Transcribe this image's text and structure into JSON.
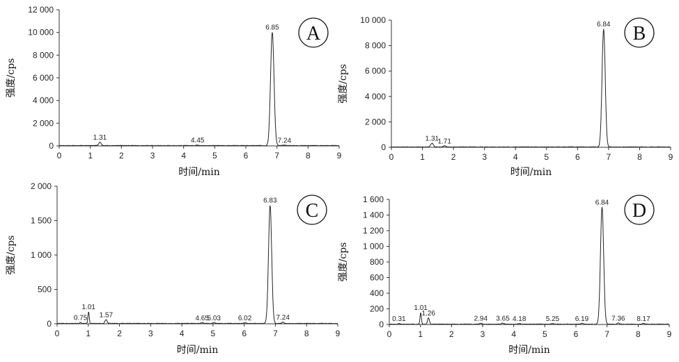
{
  "chart_data": [
    {
      "type": "line",
      "panel": "A",
      "xlabel": "时间/min",
      "ylabel": "强度/cps",
      "xlim": [
        0,
        9
      ],
      "ylim": [
        0,
        12000
      ],
      "xticks": [
        "0",
        "1",
        "2",
        "3",
        "4",
        "5",
        "6",
        "7",
        "8",
        "9"
      ],
      "yticks": [
        "0",
        "2 000",
        "4 000",
        "6 000",
        "8 000",
        "10 000",
        "12 000"
      ],
      "ytick_values": [
        0,
        2000,
        4000,
        6000,
        8000,
        10000,
        12000
      ],
      "peaks": [
        {
          "label": "1.31",
          "x": 1.31,
          "y": 320,
          "width": 0.09
        },
        {
          "label": "4.45",
          "x": 4.45,
          "y": 60,
          "width": 0.1
        },
        {
          "label": "6.85",
          "x": 6.85,
          "y": 10000,
          "width": 0.13
        },
        {
          "label": "7.24",
          "x": 7.24,
          "y": 40,
          "width": 0.1
        }
      ]
    },
    {
      "type": "line",
      "panel": "B",
      "xlabel": "时间/min",
      "ylabel": "强度/cps",
      "xlim": [
        0,
        9
      ],
      "ylim": [
        0,
        10000
      ],
      "xticks": [
        "0",
        "1",
        "2",
        "3",
        "4",
        "5",
        "6",
        "7",
        "8",
        "9"
      ],
      "yticks": [
        "0",
        "2 000",
        "4 000",
        "6 000",
        "8 000",
        "10 000"
      ],
      "ytick_values": [
        0,
        2000,
        4000,
        6000,
        8000,
        10000
      ],
      "peaks": [
        {
          "label": "1.31",
          "x": 1.31,
          "y": 300,
          "width": 0.1
        },
        {
          "label": "1.71",
          "x": 1.71,
          "y": 90,
          "width": 0.1
        },
        {
          "label": "6.84",
          "x": 6.84,
          "y": 9300,
          "width": 0.12
        }
      ]
    },
    {
      "type": "line",
      "panel": "C",
      "xlabel": "时间/min",
      "ylabel": "强度/cps",
      "xlim": [
        0,
        9
      ],
      "ylim": [
        0,
        2000
      ],
      "xticks": [
        "0",
        "1",
        "2",
        "3",
        "4",
        "5",
        "6",
        "7",
        "8",
        "9"
      ],
      "yticks": [
        "0",
        "500",
        "1 000",
        "1 500",
        "2 000"
      ],
      "ytick_values": [
        0,
        500,
        1000,
        1500,
        2000
      ],
      "peaks": [
        {
          "label": "0.75",
          "x": 0.75,
          "y": 15,
          "width": 0.06
        },
        {
          "label": "1.01",
          "x": 1.01,
          "y": 170,
          "width": 0.05
        },
        {
          "label": "1.57",
          "x": 1.57,
          "y": 55,
          "width": 0.08
        },
        {
          "label": "4.65",
          "x": 4.65,
          "y": 12,
          "width": 0.08
        },
        {
          "label": "5.03",
          "x": 5.03,
          "y": 12,
          "width": 0.08
        },
        {
          "label": "6.02",
          "x": 6.02,
          "y": 12,
          "width": 0.08
        },
        {
          "label": "6.83",
          "x": 6.83,
          "y": 1720,
          "width": 0.12
        },
        {
          "label": "7.24",
          "x": 7.24,
          "y": 20,
          "width": 0.08
        }
      ]
    },
    {
      "type": "line",
      "panel": "D",
      "xlabel": "时间/min",
      "ylabel": "强度/cps",
      "xlim": [
        0,
        9
      ],
      "ylim": [
        0,
        1600
      ],
      "xticks": [
        "0",
        "1",
        "2",
        "3",
        "4",
        "5",
        "6",
        "7",
        "8",
        "9"
      ],
      "yticks": [
        "0",
        "200",
        "400",
        "600",
        "800",
        "1 000",
        "1 200",
        "1 400",
        "1 600"
      ],
      "ytick_values": [
        0,
        200,
        400,
        600,
        800,
        1000,
        1200,
        1400,
        1600
      ],
      "peaks": [
        {
          "label": "0.31",
          "x": 0.31,
          "y": 10,
          "width": 0.06
        },
        {
          "label": "1.01",
          "x": 1.01,
          "y": 150,
          "width": 0.05
        },
        {
          "label": "1.26",
          "x": 1.26,
          "y": 80,
          "width": 0.07
        },
        {
          "label": "2.94",
          "x": 2.94,
          "y": 12,
          "width": 0.08
        },
        {
          "label": "3.65",
          "x": 3.65,
          "y": 15,
          "width": 0.08
        },
        {
          "label": "4.18",
          "x": 4.18,
          "y": 10,
          "width": 0.08
        },
        {
          "label": "5.25",
          "x": 5.25,
          "y": 10,
          "width": 0.08
        },
        {
          "label": "6.19",
          "x": 6.19,
          "y": 10,
          "width": 0.08
        },
        {
          "label": "6.84",
          "x": 6.84,
          "y": 1500,
          "width": 0.12
        },
        {
          "label": "7.36",
          "x": 7.36,
          "y": 15,
          "width": 0.08
        },
        {
          "label": "8.17",
          "x": 8.17,
          "y": 10,
          "width": 0.08
        }
      ]
    }
  ]
}
